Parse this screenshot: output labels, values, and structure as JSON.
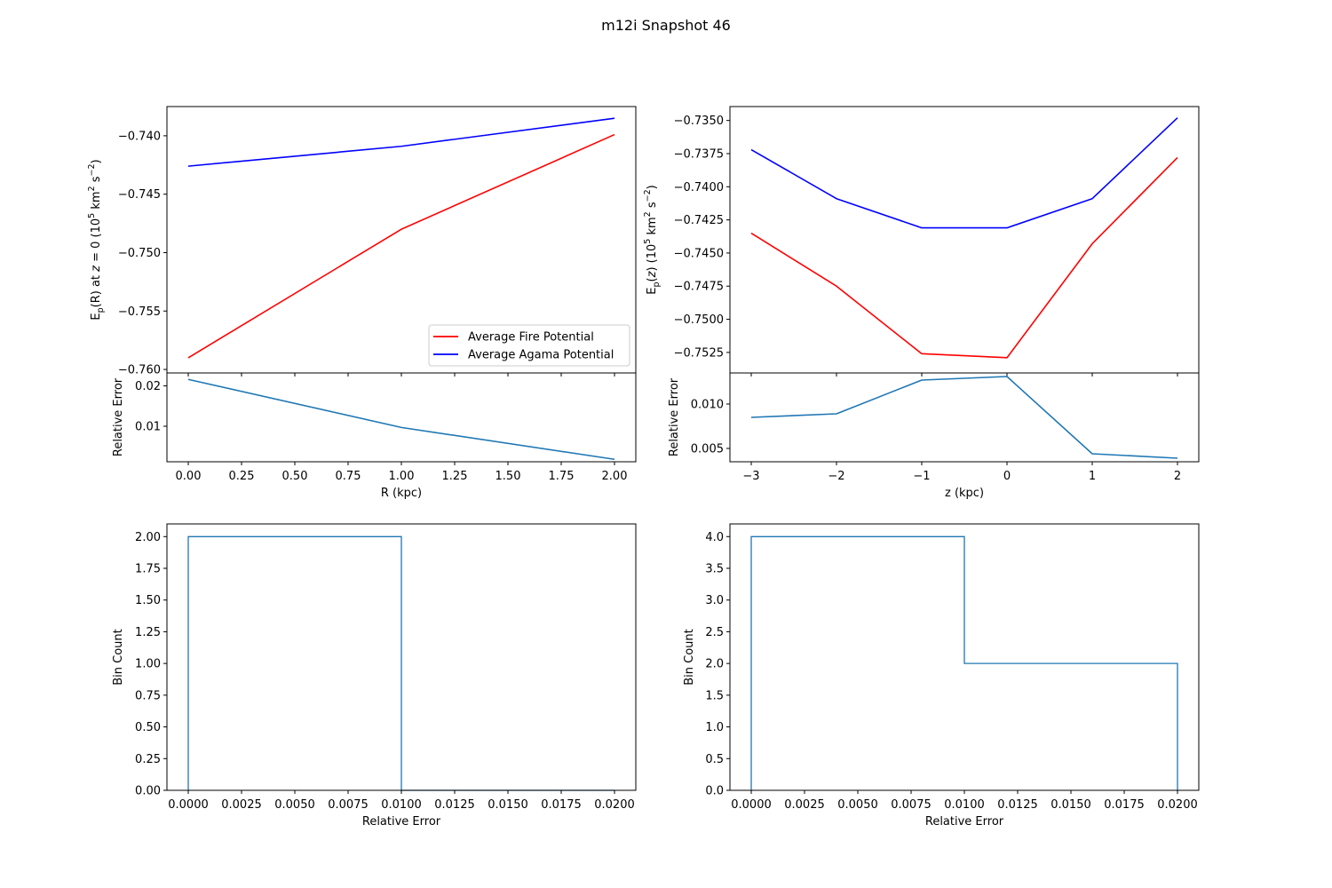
{
  "figure_title": "m12i Snapshot 46",
  "colors": {
    "fire": "#ff0000",
    "agama": "#0000ff",
    "error": "#1f77b4"
  },
  "chart_data": [
    {
      "id": "r_potential",
      "type": "line",
      "ylabel": "E_p(R) at z = 0 (10^5 km^2 s^-2)",
      "ylabel_parts": {
        "main": "E",
        "sub": "p",
        "mid": "(R) at ",
        "italz": "z",
        "eq": " = 0 (10",
        "sup1": "5",
        "km": " km",
        "sup2": "2",
        "s": " s",
        "sup3": "−2",
        "close": ")"
      },
      "x": [
        0,
        1,
        2
      ],
      "xlim": [
        -0.1,
        2.1
      ],
      "ylim": [
        -0.7603,
        -0.7375
      ],
      "yticks": [
        -0.76,
        -0.755,
        -0.75,
        -0.745,
        -0.74
      ],
      "ytick_labels": [
        "−0.760",
        "−0.755",
        "−0.750",
        "−0.745",
        "−0.740"
      ],
      "series": [
        {
          "name": "Average Fire Potential",
          "color": "#ff0000",
          "values": [
            -0.759,
            -0.748,
            -0.7399
          ]
        },
        {
          "name": "Average Agama Potential",
          "color": "#0000ff",
          "values": [
            -0.7426,
            -0.7409,
            -0.7385
          ]
        }
      ],
      "legend": "lower right",
      "grid": false
    },
    {
      "id": "r_error",
      "type": "line",
      "xlabel": "R (kpc)",
      "ylabel": "Relative Error",
      "x": [
        0,
        1,
        2
      ],
      "values": [
        0.0216,
        0.0097,
        0.0018
      ],
      "xlim": [
        -0.1,
        2.1
      ],
      "ylim": [
        0.0012,
        0.0232
      ],
      "xticks": [
        0,
        0.25,
        0.5,
        0.75,
        1.0,
        1.25,
        1.5,
        1.75,
        2.0
      ],
      "xtick_labels": [
        "0.00",
        "0.25",
        "0.50",
        "0.75",
        "1.00",
        "1.25",
        "1.50",
        "1.75",
        "2.00"
      ],
      "yticks": [
        0.01,
        0.02
      ],
      "ytick_labels": [
        "0.01",
        "0.02"
      ],
      "color": "#1f77b4"
    },
    {
      "id": "z_potential",
      "type": "line",
      "ylabel": "E_p(z) (10^5 km^2 s^-2)",
      "ylabel_parts": {
        "main": "E",
        "sub": "p",
        "mid": "(",
        "italz": "z",
        "eq": ") (10",
        "sup1": "5",
        "km": " km",
        "sup2": "2",
        "s": " s",
        "sup3": "−2",
        "close": ")"
      },
      "x": [
        -3,
        -2,
        -1,
        0,
        1,
        2
      ],
      "xlim": [
        -3.25,
        2.25
      ],
      "ylim": [
        -0.75405,
        -0.73395
      ],
      "yticks": [
        -0.7525,
        -0.75,
        -0.7475,
        -0.745,
        -0.7425,
        -0.74,
        -0.7375,
        -0.735
      ],
      "ytick_labels": [
        "−0.7525",
        "−0.7500",
        "−0.7475",
        "−0.7450",
        "−0.7425",
        "−0.7400",
        "−0.7375",
        "−0.7350"
      ],
      "series": [
        {
          "name": "Average Fire Potential",
          "color": "#ff0000",
          "values": [
            -0.7435,
            -0.7475,
            -0.7526,
            -0.7529,
            -0.7443,
            -0.7378
          ]
        },
        {
          "name": "Average Agama Potential",
          "color": "#0000ff",
          "values": [
            -0.7372,
            -0.7409,
            -0.7431,
            -0.7431,
            -0.7409,
            -0.7348
          ]
        }
      ],
      "grid": false
    },
    {
      "id": "z_error",
      "type": "line",
      "xlabel": "z (kpc)",
      "ylabel": "Relative Error",
      "x": [
        -3,
        -2,
        -1,
        0,
        1,
        2
      ],
      "values": [
        0.0085,
        0.0089,
        0.0127,
        0.0131,
        0.0044,
        0.0039
      ],
      "xlim": [
        -3.25,
        2.25
      ],
      "ylim": [
        0.0035,
        0.0135
      ],
      "xticks": [
        -3,
        -2,
        -1,
        0,
        1,
        2
      ],
      "xtick_labels": [
        "−3",
        "−2",
        "−1",
        "0",
        "1",
        "2"
      ],
      "yticks": [
        0.005,
        0.01
      ],
      "ytick_labels": [
        "0.005",
        "0.010"
      ],
      "color": "#1f77b4"
    },
    {
      "id": "r_hist",
      "type": "histogram",
      "xlabel": "Relative Error",
      "ylabel": "Bin Count",
      "bin_edges": [
        0,
        0.01,
        0.02
      ],
      "counts": [
        2,
        0
      ],
      "xlim": [
        -0.001,
        0.021
      ],
      "ylim": [
        0,
        2.1
      ],
      "xticks": [
        0,
        0.0025,
        0.005,
        0.0075,
        0.01,
        0.0125,
        0.015,
        0.0175,
        0.02
      ],
      "xtick_labels": [
        "0.0000",
        "0.0025",
        "0.0050",
        "0.0075",
        "0.0100",
        "0.0125",
        "0.0150",
        "0.0175",
        "0.0200"
      ],
      "yticks": [
        0,
        0.25,
        0.5,
        0.75,
        1.0,
        1.25,
        1.5,
        1.75,
        2.0
      ],
      "ytick_labels": [
        "0.00",
        "0.25",
        "0.50",
        "0.75",
        "1.00",
        "1.25",
        "1.50",
        "1.75",
        "2.00"
      ],
      "color": "#1f77b4"
    },
    {
      "id": "z_hist",
      "type": "histogram",
      "xlabel": "Relative Error",
      "ylabel": "Bin Count",
      "bin_edges": [
        0,
        0.01,
        0.02
      ],
      "counts": [
        4,
        2
      ],
      "xlim": [
        -0.001,
        0.021
      ],
      "ylim": [
        0,
        4.2
      ],
      "xticks": [
        0,
        0.0025,
        0.005,
        0.0075,
        0.01,
        0.0125,
        0.015,
        0.0175,
        0.02
      ],
      "xtick_labels": [
        "0.0000",
        "0.0025",
        "0.0050",
        "0.0075",
        "0.0100",
        "0.0125",
        "0.0150",
        "0.0175",
        "0.0200"
      ],
      "yticks": [
        0,
        0.5,
        1.0,
        1.5,
        2.0,
        2.5,
        3.0,
        3.5,
        4.0
      ],
      "ytick_labels": [
        "0.0",
        "0.5",
        "1.0",
        "1.5",
        "2.0",
        "2.5",
        "3.0",
        "3.5",
        "4.0"
      ],
      "color": "#1f77b4"
    }
  ]
}
